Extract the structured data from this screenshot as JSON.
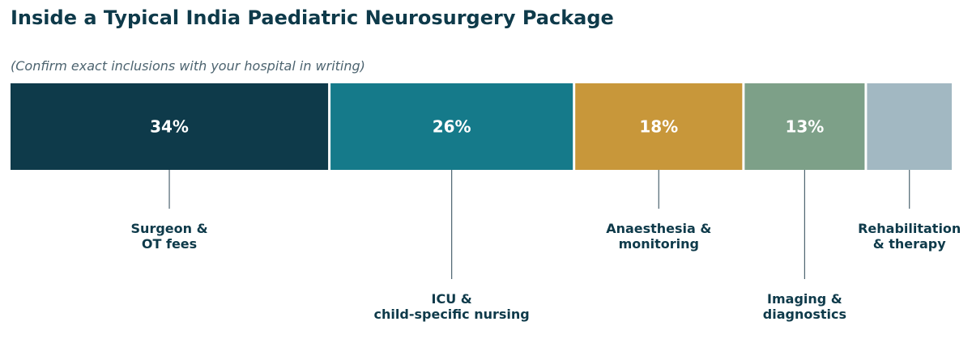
{
  "title": "Inside a Typical India Paediatric Neurosurgery Package",
  "subtitle": "(Confirm exact inclusions with your hospital in writing)",
  "chart_data": {
    "type": "bar",
    "orientation": "horizontal-stacked-100",
    "title": "Inside a Typical India Paediatric Neurosurgery Package",
    "subtitle": "(Confirm exact inclusions with your hospital in writing)",
    "unit": "%",
    "total": 100,
    "segments": [
      {
        "label_lines": [
          "Surgeon &",
          "OT fees"
        ],
        "value": 34,
        "value_label": "34%",
        "color": "#0e3a4a"
      },
      {
        "label_lines": [
          "ICU &",
          "child-specific nursing"
        ],
        "value": 26,
        "value_label": "26%",
        "color": "#157a8a"
      },
      {
        "label_lines": [
          "Anaesthesia &",
          "monitoring"
        ],
        "value": 18,
        "value_label": "18%",
        "color": "#c8973a"
      },
      {
        "label_lines": [
          "Imaging &",
          "diagnostics"
        ],
        "value": 13,
        "value_label": "13%",
        "color": "#7da088"
      },
      {
        "label_lines": [
          "Rehabilitation",
          "& therapy"
        ],
        "value": 9,
        "value_label": "",
        "color": "#a2b8c2"
      }
    ],
    "legend": "none",
    "grid": false
  }
}
